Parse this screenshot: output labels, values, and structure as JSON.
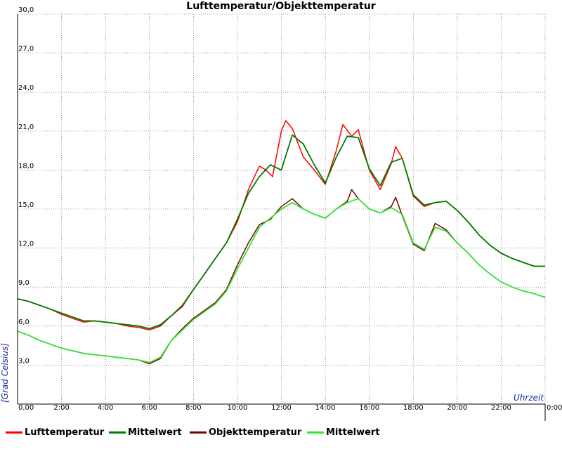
{
  "chart_data": {
    "type": "line",
    "title": "Lufttemperatur/Objekttemperatur",
    "xlabel": "Uhrzeit",
    "ylabel": "[Grad Celsius]",
    "xlim": [
      0,
      24
    ],
    "ylim": [
      0,
      30
    ],
    "x_ticks": [
      "0,00",
      "2:00",
      "4:00",
      "6:00",
      "8:00",
      "10:00",
      "12:00",
      "14:00",
      "16:00",
      "18:00",
      "20:00",
      "22:00",
      "0:00"
    ],
    "y_ticks": [
      "3,0",
      "6,0",
      "9,0",
      "12,0",
      "15,0",
      "18,0",
      "21,0",
      "24,0",
      "27,0",
      "30,0"
    ],
    "grid": true,
    "legend_position": "bottom",
    "series": [
      {
        "name": "Lufttemperatur",
        "color": "#ff0000",
        "x": [
          0,
          0.5,
          1,
          1.5,
          2,
          2.5,
          3,
          3.5,
          4,
          4.5,
          5,
          5.5,
          6,
          6.5,
          7,
          7.5,
          8,
          8.5,
          9,
          9.5,
          10,
          10.5,
          11,
          11.3,
          11.6,
          12,
          12.2,
          12.5,
          13,
          13.5,
          14,
          14.5,
          14.8,
          15.2,
          15.5,
          16,
          16.5,
          17,
          17.2,
          17.5,
          18,
          18.5,
          19,
          19.5,
          20,
          20.5,
          21,
          21.5,
          22,
          22.5,
          23,
          23.5,
          24
        ],
        "y": [
          8.1,
          7.9,
          7.6,
          7.3,
          6.9,
          6.6,
          6.3,
          6.4,
          6.3,
          6.2,
          6.0,
          5.9,
          5.7,
          6.0,
          6.8,
          7.5,
          8.8,
          10.0,
          11.2,
          12.4,
          14.0,
          16.5,
          18.3,
          18.0,
          17.5,
          21.0,
          21.8,
          21.2,
          19.0,
          18.0,
          16.9,
          19.5,
          21.5,
          20.6,
          21.1,
          18.0,
          16.5,
          18.5,
          19.8,
          18.9,
          16.0,
          15.2,
          15.5,
          15.6,
          14.9,
          14.0,
          13.0,
          12.2,
          11.6,
          11.2,
          10.9,
          10.6,
          10.6
        ]
      },
      {
        "name": "Mittelwert",
        "color": "#007a00",
        "x": [
          0,
          0.5,
          1,
          1.5,
          2,
          2.5,
          3,
          3.5,
          4,
          4.5,
          5,
          5.5,
          6,
          6.5,
          7,
          7.5,
          8,
          8.5,
          9,
          9.5,
          10,
          10.5,
          11,
          11.5,
          12,
          12.5,
          13,
          13.5,
          14,
          14.5,
          15,
          15.5,
          16,
          16.5,
          17,
          17.5,
          18,
          18.5,
          19,
          19.5,
          20,
          20.5,
          21,
          21.5,
          22,
          22.5,
          23,
          23.5,
          24
        ],
        "y": [
          8.1,
          7.9,
          7.6,
          7.3,
          7.0,
          6.7,
          6.4,
          6.4,
          6.3,
          6.2,
          6.1,
          6.0,
          5.8,
          6.1,
          6.8,
          7.6,
          8.8,
          10.0,
          11.2,
          12.4,
          14.2,
          16.2,
          17.5,
          18.4,
          18.0,
          20.7,
          20.0,
          18.4,
          17.0,
          19.0,
          20.6,
          20.5,
          18.1,
          16.8,
          18.6,
          18.9,
          16.1,
          15.3,
          15.5,
          15.6,
          14.9,
          14.0,
          13.0,
          12.2,
          11.6,
          11.2,
          10.9,
          10.6,
          10.6
        ]
      },
      {
        "name": "Objekttemperatur",
        "color": "#7a0000",
        "x": [
          0,
          0.5,
          1,
          1.5,
          2,
          2.5,
          3,
          3.5,
          4,
          4.5,
          5,
          5.5,
          6,
          6.5,
          7,
          7.5,
          8,
          8.5,
          9,
          9.5,
          10,
          10.5,
          11,
          11.5,
          12,
          12.5,
          13,
          13.5,
          14,
          14.5,
          15,
          15.2,
          15.5,
          16,
          16.5,
          17,
          17.2,
          17.5,
          18,
          18.5,
          19,
          19.5,
          20,
          20.5,
          21,
          21.5,
          22,
          22.5,
          23,
          23.5,
          24
        ],
        "y": [
          5.6,
          5.3,
          4.9,
          4.6,
          4.3,
          4.1,
          3.9,
          3.8,
          3.7,
          3.6,
          3.5,
          3.4,
          3.1,
          3.5,
          4.9,
          5.8,
          6.6,
          7.2,
          7.8,
          8.8,
          10.7,
          12.4,
          13.8,
          14.2,
          15.2,
          15.8,
          15.0,
          14.6,
          14.3,
          15.0,
          15.6,
          16.5,
          15.8,
          15.0,
          14.7,
          15.2,
          15.9,
          14.5,
          12.3,
          11.8,
          13.9,
          13.4,
          12.4,
          11.6,
          10.7,
          10.0,
          9.4,
          9.0,
          8.7,
          8.5,
          8.2
        ]
      },
      {
        "name": "Mittelwert",
        "color": "#33e633",
        "x": [
          0,
          0.5,
          1,
          1.5,
          2,
          2.5,
          3,
          3.5,
          4,
          4.5,
          5,
          5.5,
          6,
          6.5,
          7,
          7.5,
          8,
          8.5,
          9,
          9.5,
          10,
          10.5,
          11,
          11.5,
          12,
          12.5,
          13,
          13.5,
          14,
          14.5,
          15,
          15.5,
          16,
          16.5,
          17,
          17.5,
          18,
          18.5,
          19,
          19.5,
          20,
          20.5,
          21,
          21.5,
          22,
          22.5,
          23,
          23.5,
          24
        ],
        "y": [
          5.6,
          5.3,
          4.9,
          4.6,
          4.3,
          4.1,
          3.9,
          3.8,
          3.7,
          3.6,
          3.5,
          3.4,
          3.2,
          3.6,
          4.9,
          5.7,
          6.5,
          7.1,
          7.7,
          8.7,
          10.4,
          12.0,
          13.6,
          14.3,
          15.0,
          15.5,
          15.0,
          14.6,
          14.3,
          15.0,
          15.5,
          15.8,
          15.0,
          14.7,
          15.1,
          14.6,
          12.4,
          11.9,
          13.6,
          13.3,
          12.4,
          11.6,
          10.7,
          10.0,
          9.4,
          9.0,
          8.7,
          8.5,
          8.2
        ]
      }
    ]
  }
}
